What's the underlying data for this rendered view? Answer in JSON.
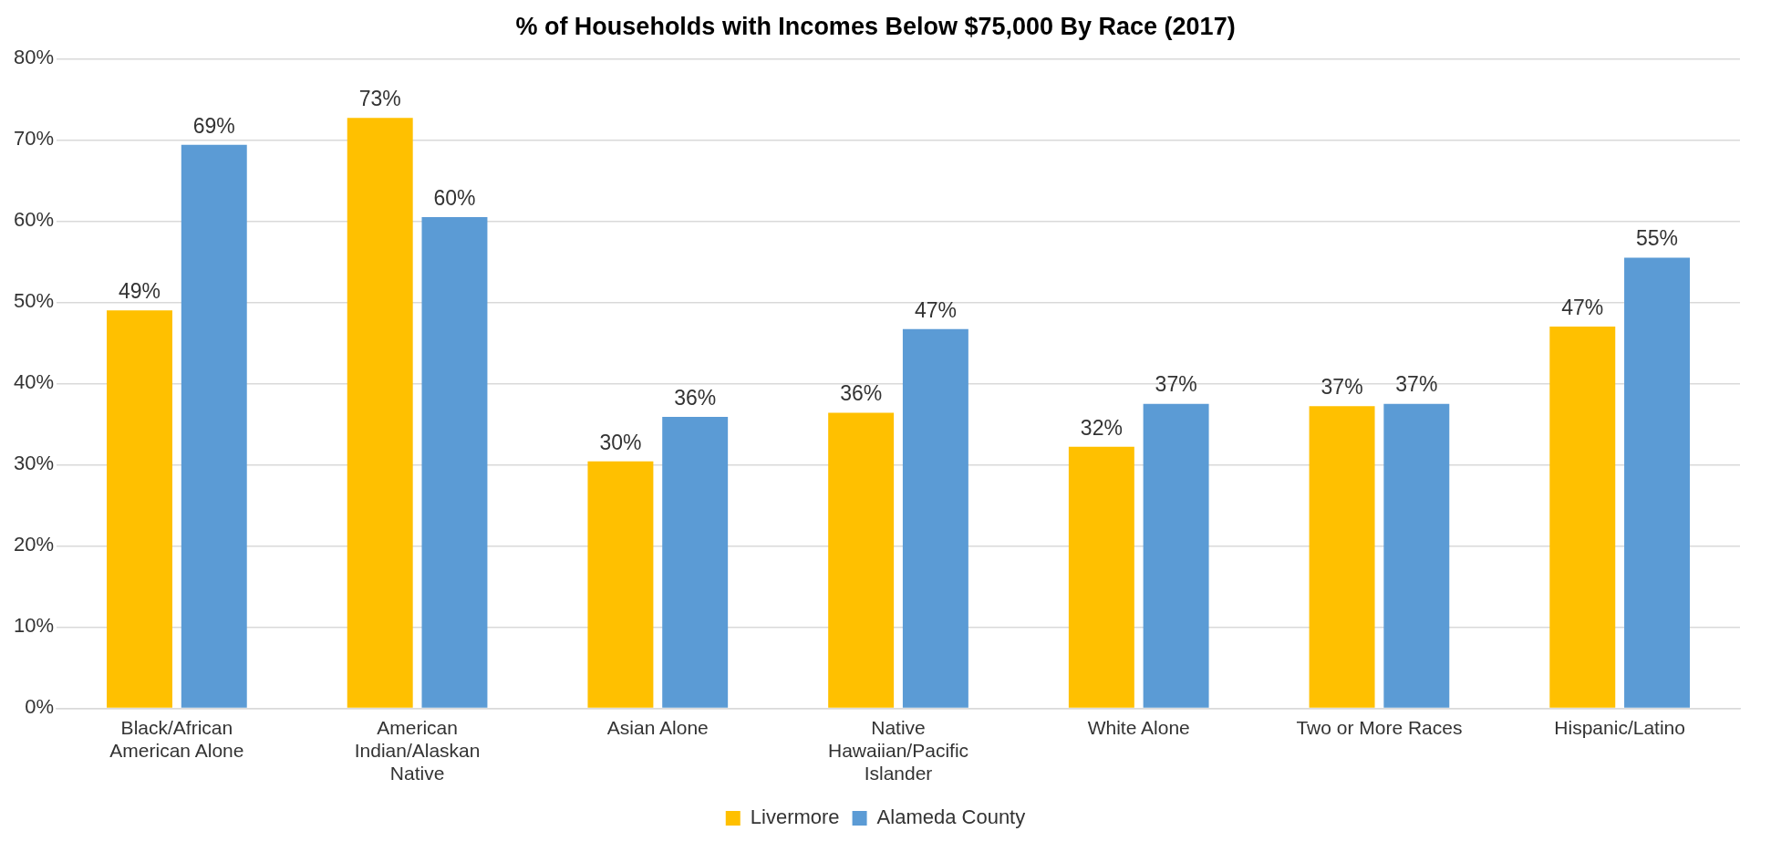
{
  "chart_data": {
    "type": "bar",
    "title": "% of Households with Incomes Below $75,000 By Race (2017)",
    "categories": [
      "Black/African American Alone",
      "American Indian/Alaskan Native",
      "Asian Alone",
      "Native Hawaiian/Pacific Islander",
      "White Alone",
      "Two or More Races",
      "Hispanic/Latino"
    ],
    "series": [
      {
        "name": "Livermore",
        "color": "#ffc000",
        "values": [
          49,
          72.7,
          30.4,
          36.4,
          32.2,
          37.2,
          47
        ],
        "value_labels": [
          "49%",
          "73%",
          "30%",
          "36%",
          "32%",
          "37%",
          "47%"
        ]
      },
      {
        "name": "Alameda County",
        "color": "#5b9bd5",
        "values": [
          69.4,
          60.5,
          35.9,
          46.7,
          37.5,
          37.5,
          55.5
        ],
        "value_labels": [
          "69%",
          "60%",
          "36%",
          "47%",
          "37%",
          "37%",
          "55%"
        ]
      }
    ],
    "ylim": [
      0,
      80
    ],
    "yticks": [
      {
        "value": 0,
        "label": "0%"
      },
      {
        "value": 10,
        "label": "10%"
      },
      {
        "value": 20,
        "label": "20%"
      },
      {
        "value": 30,
        "label": "30%"
      },
      {
        "value": 40,
        "label": "40%"
      },
      {
        "value": 50,
        "label": "50%"
      },
      {
        "value": 60,
        "label": "60%"
      },
      {
        "value": 70,
        "label": "70%"
      },
      {
        "value": 80,
        "label": "80%"
      }
    ],
    "grid": "y",
    "legend": "bottom"
  }
}
